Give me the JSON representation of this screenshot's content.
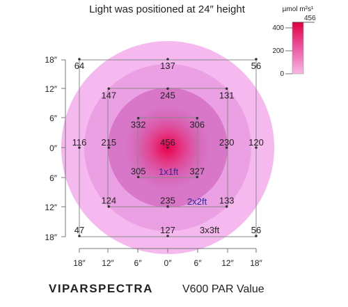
{
  "chart_data": {
    "type": "heatmap",
    "title": "Light was positioned at 24″ height",
    "unit_label": "µmol m²s¹",
    "colorbar": {
      "min": 0,
      "max": 456,
      "ticks": [
        "400",
        "200",
        "0"
      ],
      "max_label": "456"
    },
    "x_ticks": [
      "18″",
      "12″",
      "6″",
      "0″",
      "6″",
      "12″",
      "18″"
    ],
    "y_ticks": [
      "18″",
      "12″",
      "6″",
      "0″",
      "6″",
      "12″",
      "18″"
    ],
    "footprints": [
      "1x1ft",
      "2x2ft",
      "3x3ft"
    ],
    "points": [
      {
        "x": -18,
        "y": 18,
        "value": 64
      },
      {
        "x": 0,
        "y": 18,
        "value": 137
      },
      {
        "x": 18,
        "y": 18,
        "value": 56
      },
      {
        "x": -12,
        "y": 12,
        "value": 147
      },
      {
        "x": 0,
        "y": 12,
        "value": 245
      },
      {
        "x": 12,
        "y": 12,
        "value": 131
      },
      {
        "x": -6,
        "y": 6,
        "value": 332
      },
      {
        "x": 6,
        "y": 6,
        "value": 306
      },
      {
        "x": -18,
        "y": 0,
        "value": 116
      },
      {
        "x": -12,
        "y": 0,
        "value": 215
      },
      {
        "x": 0,
        "y": 0,
        "value": 456
      },
      {
        "x": 12,
        "y": 0,
        "value": 230
      },
      {
        "x": 18,
        "y": 0,
        "value": 120
      },
      {
        "x": -6,
        "y": -6,
        "value": 305
      },
      {
        "x": 6,
        "y": -6,
        "value": 327
      },
      {
        "x": -12,
        "y": -12,
        "value": 124
      },
      {
        "x": 0,
        "y": -12,
        "value": 235
      },
      {
        "x": 12,
        "y": -12,
        "value": 133
      },
      {
        "x": -18,
        "y": -18,
        "value": 47
      },
      {
        "x": 0,
        "y": -18,
        "value": 127
      },
      {
        "x": 18,
        "y": -18,
        "value": 56
      }
    ]
  },
  "brand": "VIPARSPECTRA",
  "model_label": "V600 PAR Value"
}
